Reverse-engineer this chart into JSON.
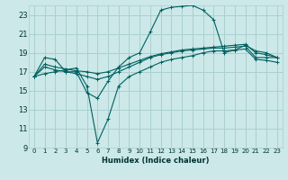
{
  "xlabel": "Humidex (Indice chaleur)",
  "bg_color": "#cce8e8",
  "grid_color": "#aad0d0",
  "line_color": "#006060",
  "xlim": [
    -0.5,
    23.5
  ],
  "ylim": [
    9,
    24
  ],
  "xticks": [
    0,
    1,
    2,
    3,
    4,
    5,
    6,
    7,
    8,
    9,
    10,
    11,
    12,
    13,
    14,
    15,
    16,
    17,
    18,
    19,
    20,
    21,
    22,
    23
  ],
  "yticks": [
    9,
    11,
    13,
    15,
    17,
    19,
    21,
    23
  ],
  "curve1_x": [
    0,
    1,
    2,
    3,
    4,
    5,
    6,
    7,
    8,
    9,
    10,
    11,
    12,
    13,
    14,
    15,
    16,
    17,
    18,
    19,
    20,
    21,
    22,
    23
  ],
  "curve1_y": [
    16.5,
    18.5,
    18.3,
    17.0,
    17.0,
    14.8,
    14.2,
    16.0,
    17.5,
    18.5,
    19.0,
    21.2,
    23.5,
    23.8,
    23.9,
    24.0,
    23.5,
    22.5,
    19.0,
    19.3,
    19.8,
    19.2,
    19.0,
    18.5
  ],
  "curve2_x": [
    0,
    1,
    2,
    3,
    4,
    5,
    6,
    7,
    8,
    9,
    10,
    11,
    12,
    13,
    14,
    15,
    16,
    17,
    18,
    19,
    20,
    21,
    22,
    23
  ],
  "curve2_y": [
    16.5,
    17.5,
    17.2,
    17.0,
    16.8,
    16.5,
    16.2,
    16.5,
    17.0,
    17.5,
    18.0,
    18.5,
    18.8,
    19.0,
    19.2,
    19.3,
    19.4,
    19.5,
    19.5,
    19.6,
    19.7,
    18.5,
    18.5,
    18.5
  ],
  "curve3_x": [
    0,
    1,
    2,
    3,
    4,
    5,
    6,
    7,
    8,
    9,
    10,
    11,
    12,
    13,
    14,
    15,
    16,
    17,
    18,
    19,
    20,
    21,
    22,
    23
  ],
  "curve3_y": [
    16.5,
    17.8,
    17.5,
    17.3,
    17.1,
    17.0,
    16.8,
    17.0,
    17.4,
    17.8,
    18.2,
    18.6,
    18.9,
    19.1,
    19.3,
    19.4,
    19.5,
    19.6,
    19.7,
    19.8,
    19.9,
    19.0,
    18.8,
    18.5
  ],
  "curve4_x": [
    0,
    1,
    2,
    3,
    4,
    5,
    6,
    7,
    8,
    9,
    10,
    11,
    12,
    13,
    14,
    15,
    16,
    17,
    18,
    19,
    20,
    21,
    22,
    23
  ],
  "curve4_y": [
    16.5,
    16.8,
    17.0,
    17.2,
    17.4,
    15.5,
    9.5,
    12.0,
    15.5,
    16.5,
    17.0,
    17.5,
    18.0,
    18.3,
    18.5,
    18.7,
    19.0,
    19.2,
    19.2,
    19.3,
    19.4,
    18.3,
    18.2,
    18.0
  ]
}
